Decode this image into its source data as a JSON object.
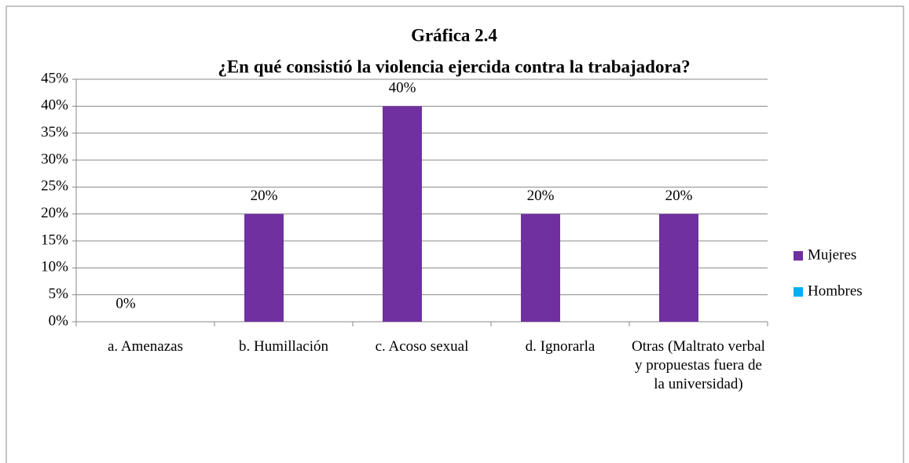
{
  "chart_data": {
    "type": "bar",
    "title": "Gráfica 2.4",
    "subtitle": "¿En qué consistió la violencia ejercida contra la trabajadora?",
    "categories": [
      "a. Amenazas",
      "b. Humillación",
      "c. Acoso sexual",
      "d. Ignorarla",
      "Otras (Maltrato verbal y propuestas fuera de la universidad)"
    ],
    "series": [
      {
        "name": "Mujeres",
        "color": "#7030a0",
        "values": [
          0,
          20,
          40,
          20,
          20
        ],
        "value_labels": [
          "0%",
          "20%",
          "40%",
          "20%",
          "20%"
        ]
      },
      {
        "name": "Hombres",
        "color": "#00b0f0",
        "values": [
          null,
          null,
          null,
          null,
          null
        ]
      }
    ],
    "ylim": [
      0,
      45
    ],
    "yticks": [
      {
        "value": 0,
        "label": "0%"
      },
      {
        "value": 5,
        "label": "5%"
      },
      {
        "value": 10,
        "label": "10%"
      },
      {
        "value": 15,
        "label": "15%"
      },
      {
        "value": 20,
        "label": "20%"
      },
      {
        "value": 25,
        "label": "25%"
      },
      {
        "value": 30,
        "label": "30%"
      },
      {
        "value": 35,
        "label": "35%"
      },
      {
        "value": 40,
        "label": "40%"
      },
      {
        "value": 45,
        "label": "45%"
      }
    ],
    "grid": true,
    "legend": "right"
  }
}
